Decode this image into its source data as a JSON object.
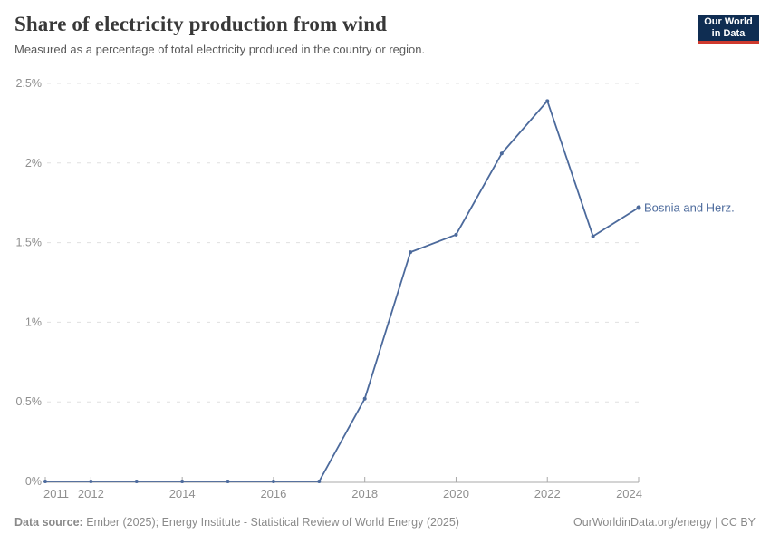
{
  "header": {
    "title": "Share of electricity production from wind",
    "subtitle": "Measured as a percentage of total electricity produced in the country or region.",
    "logo_line1": "Our World",
    "logo_line2": "in Data"
  },
  "chart_data": {
    "type": "line",
    "title": "Share of electricity production from wind",
    "subtitle": "Measured as a percentage of total electricity produced in the country or region.",
    "x": [
      2011,
      2012,
      2013,
      2014,
      2015,
      2016,
      2017,
      2018,
      2019,
      2020,
      2021,
      2022,
      2023,
      2024
    ],
    "series": [
      {
        "name": "Bosnia and Herz.",
        "values": [
          0,
          0,
          0,
          0,
          0,
          0,
          0,
          0.52,
          1.44,
          1.55,
          2.06,
          2.39,
          1.54,
          1.72
        ]
      }
    ],
    "xlim": [
      2011,
      2024
    ],
    "ylim": [
      0,
      2.5
    ],
    "x_ticks": [
      2011,
      2012,
      2014,
      2016,
      2018,
      2020,
      2022,
      2024
    ],
    "x_tick_labels": [
      "2011",
      "2012",
      "2014",
      "2016",
      "2018",
      "2020",
      "2022",
      "2024"
    ],
    "y_ticks": [
      0,
      0.5,
      1,
      1.5,
      2,
      2.5
    ],
    "y_tick_labels": [
      "0%",
      "0.5%",
      "1%",
      "1.5%",
      "2%",
      "2.5%"
    ],
    "grid": "horizontal-dashed",
    "legend": "end-of-line-label"
  },
  "footer": {
    "source_label": "Data source:",
    "source_text": " Ember (2025); Energy Institute - Statistical Review of World Energy (2025)",
    "right_text": "OurWorldinData.org/energy | CC BY"
  },
  "colors": {
    "line": "#4c6a9c",
    "grid": "#e0e0e0",
    "axis": "#a8a8a8",
    "tick_text": "#8f8f8f",
    "logo_bg": "#0f2d52",
    "logo_red": "#cf3a2e"
  }
}
